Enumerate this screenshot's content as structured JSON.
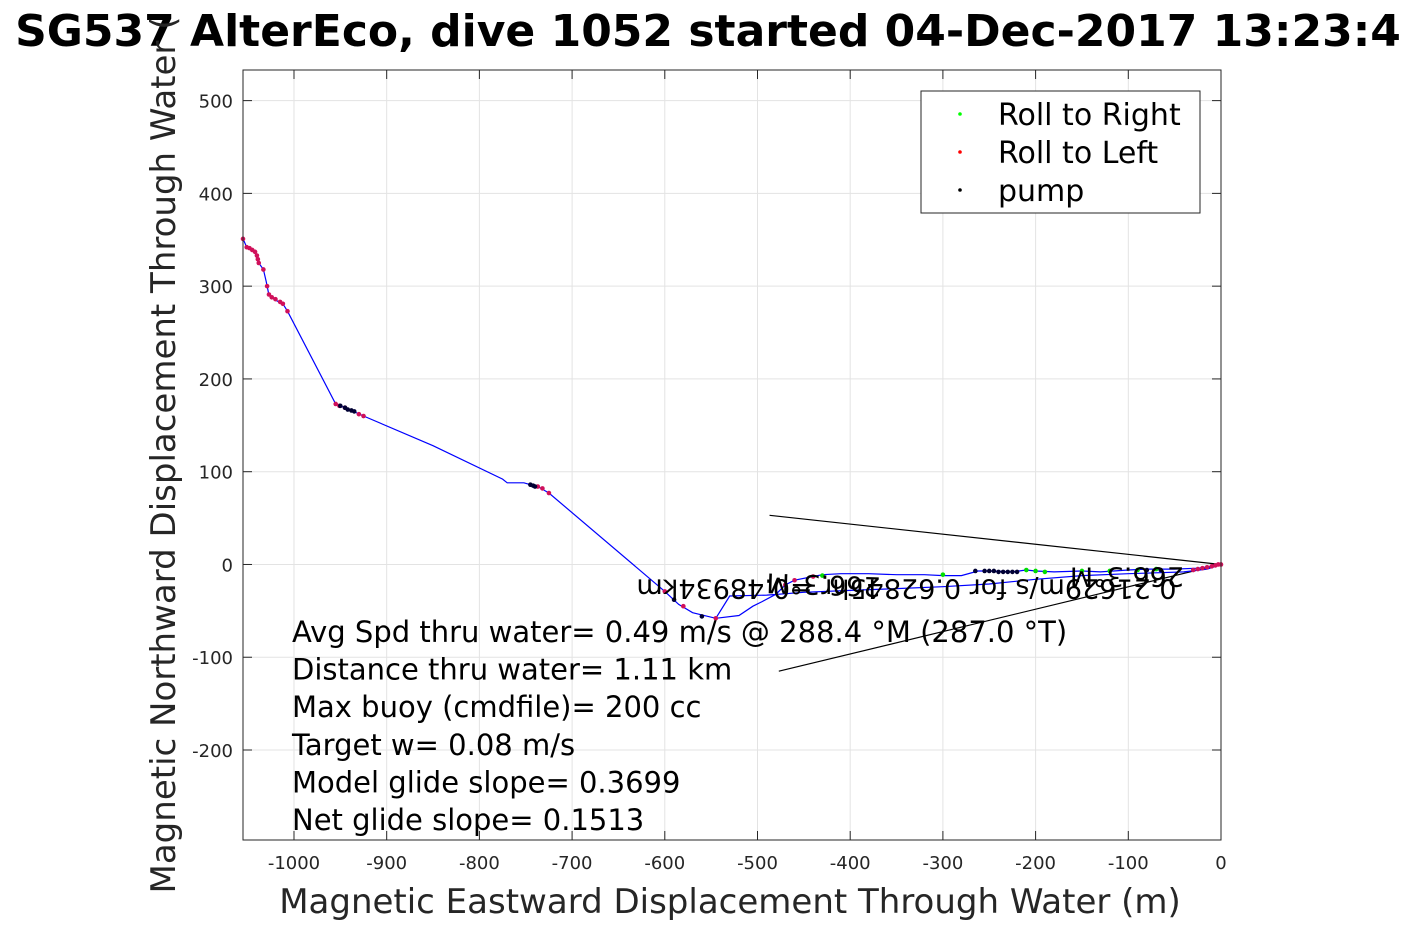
{
  "chart_data": {
    "type": "scatter",
    "title": "SG537 AlterEco, dive 1052 started 04-Dec-2017 13:23:4",
    "xlabel": "Magnetic Eastward Displacement Through Water (m)",
    "ylabel": "Magnetic Northward Displacement Through Water (",
    "xlim": [
      -1055,
      0
    ],
    "ylim": [
      -297,
      533
    ],
    "xticks": [
      -1000,
      -900,
      -800,
      -700,
      -600,
      -500,
      -400,
      -300,
      -200,
      -100,
      0
    ],
    "yticks": [
      -200,
      -100,
      0,
      100,
      200,
      300,
      400,
      500
    ],
    "xtick_labels": [
      "-1000",
      "-900",
      "-800",
      "-700",
      "-600",
      "-500",
      "-400",
      "-300",
      "-200",
      "-100",
      "0"
    ],
    "ytick_labels": [
      "-200",
      "-100",
      "0",
      "100",
      "200",
      "300",
      "400",
      "500"
    ],
    "grid": true,
    "legend_position": "top-right",
    "legend": [
      {
        "label": "Roll to Right",
        "color": "#00ff00"
      },
      {
        "label": "Roll to Left",
        "color": "#ff0000"
      },
      {
        "label": "pump",
        "color": "#000000"
      }
    ],
    "track": {
      "color": "#0000ff",
      "points": [
        [
          -1055,
          351
        ],
        [
          -1051,
          342
        ],
        [
          -1046,
          340
        ],
        [
          -1042,
          336
        ],
        [
          -1040,
          330
        ],
        [
          -1038,
          325
        ],
        [
          -1033,
          318
        ],
        [
          -1030,
          305
        ],
        [
          -1027,
          290
        ],
        [
          -1020,
          285
        ],
        [
          -1012,
          281
        ],
        [
          -1007,
          273
        ],
        [
          -955,
          173
        ],
        [
          -945,
          169
        ],
        [
          -938,
          166
        ],
        [
          -925,
          160
        ],
        [
          -850,
          128
        ],
        [
          -775,
          92
        ],
        [
          -770,
          88
        ],
        [
          -752,
          88
        ],
        [
          -745,
          86
        ],
        [
          -737,
          84
        ],
        [
          -725,
          77
        ],
        [
          -600,
          -29
        ],
        [
          -585,
          -43
        ],
        [
          -570,
          -52
        ],
        [
          -545,
          -58
        ],
        [
          -520,
          -55
        ],
        [
          -505,
          -45
        ],
        [
          -495,
          -40
        ],
        [
          -480,
          -32
        ],
        [
          -470,
          -22
        ],
        [
          -460,
          -17
        ],
        [
          -440,
          -13
        ],
        [
          -430,
          -11
        ],
        [
          -410,
          -10
        ],
        [
          -380,
          -10
        ],
        [
          -350,
          -11
        ],
        [
          -320,
          -11
        ],
        [
          -300,
          -12
        ],
        [
          -280,
          -12
        ],
        [
          -262,
          -7
        ],
        [
          -250,
          -7
        ],
        [
          -225,
          -8
        ],
        [
          -210,
          -6
        ],
        [
          -200,
          -7
        ],
        [
          -180,
          -8
        ],
        [
          -150,
          -7
        ],
        [
          -130,
          -8
        ],
        [
          -100,
          -6
        ],
        [
          -80,
          -5
        ],
        [
          -50,
          -5
        ],
        [
          -25,
          -4
        ],
        [
          -10,
          -2
        ],
        [
          0,
          0
        ]
      ],
      "return_leg": [
        [
          -545,
          -58
        ],
        [
          -530,
          -34
        ],
        [
          -490,
          -33
        ],
        [
          -450,
          -30
        ],
        [
          -400,
          -28
        ],
        [
          -350,
          -26
        ],
        [
          -300,
          -24
        ],
        [
          -250,
          -21
        ],
        [
          -200,
          -16
        ],
        [
          -150,
          -12
        ],
        [
          -100,
          -10
        ],
        [
          -70,
          -9
        ],
        [
          -40,
          -8
        ],
        [
          -15,
          -5
        ],
        [
          0,
          0
        ]
      ]
    },
    "roll_right_points": [
      [
        -430,
        -12
      ],
      [
        -300,
        -11
      ],
      [
        -210,
        -6
      ],
      [
        -200,
        -7
      ],
      [
        -190,
        -8
      ],
      [
        -150,
        -7
      ],
      [
        -120,
        -7
      ],
      [
        -90,
        -6
      ],
      [
        -70,
        -5
      ]
    ],
    "roll_left_points": [
      [
        -1055,
        351
      ],
      [
        -1051,
        342
      ],
      [
        -1048,
        341
      ],
      [
        -1045,
        339
      ],
      [
        -1042,
        337
      ],
      [
        -1040,
        333
      ],
      [
        -1039,
        329
      ],
      [
        -1038,
        325
      ],
      [
        -1033,
        318
      ],
      [
        -1029,
        300
      ],
      [
        -1027,
        291
      ],
      [
        -1024,
        288
      ],
      [
        -1020,
        286
      ],
      [
        -1015,
        283
      ],
      [
        -1012,
        281
      ],
      [
        -1007,
        273
      ],
      [
        -955,
        173
      ],
      [
        -951,
        171
      ],
      [
        -945,
        169
      ],
      [
        -930,
        162
      ],
      [
        -925,
        160
      ],
      [
        -737,
        84
      ],
      [
        -732,
        82
      ],
      [
        -725,
        77
      ],
      [
        -600,
        -29
      ],
      [
        -580,
        -45
      ],
      [
        -545,
        -58
      ],
      [
        -470,
        -22
      ],
      [
        -460,
        -17
      ],
      [
        -440,
        -13
      ],
      [
        -30,
        -6
      ],
      [
        -25,
        -5
      ],
      [
        -20,
        -4
      ],
      [
        -15,
        -3
      ],
      [
        -10,
        -2
      ],
      [
        -6,
        -1
      ],
      [
        -3,
        0
      ],
      [
        0,
        0
      ]
    ],
    "pump_points": [
      [
        -950,
        171
      ],
      [
        -945,
        169
      ],
      [
        -942,
        167
      ],
      [
        -938,
        166
      ],
      [
        -935,
        165
      ],
      [
        -745,
        86
      ],
      [
        -742,
        85
      ],
      [
        -740,
        84
      ],
      [
        -590,
        -38
      ],
      [
        -560,
        -56
      ],
      [
        -265,
        -7
      ],
      [
        -255,
        -7
      ],
      [
        -250,
        -7
      ],
      [
        -245,
        -7
      ],
      [
        -240,
        -8
      ],
      [
        -235,
        -8
      ],
      [
        -230,
        -8
      ],
      [
        -225,
        -8
      ],
      [
        -220,
        -8
      ],
      [
        -80,
        -6
      ],
      [
        -65,
        -6
      ]
    ],
    "reference_lines": [
      {
        "from": [
          -487,
          53
        ],
        "to": [
          0,
          0
        ]
      },
      {
        "from": [
          -477,
          -115
        ],
        "to": [
          0,
          0
        ]
      }
    ],
    "annotations": [
      {
        "text": "266.3°M",
        "x": -40,
        "y": -3,
        "rotation": 180
      },
      {
        "text": "0.21629m/s for 0.62845hr =0.48934km",
        "x": -48,
        "y": -16,
        "rotation": 180
      },
      {
        "text": "266.3°M",
        "x": -367,
        "y": -14,
        "rotation": 182
      }
    ],
    "stats": [
      "Avg Spd thru water=  0.49 m/s @ 288.4 °M (287.0 °T)",
      "Distance thru water=  1.11 km",
      "Max buoy (cmdfile)= 200 cc",
      "Target w= 0.08 m/s",
      "Model glide slope= 0.3699",
      "Net glide slope= 0.1513"
    ]
  }
}
